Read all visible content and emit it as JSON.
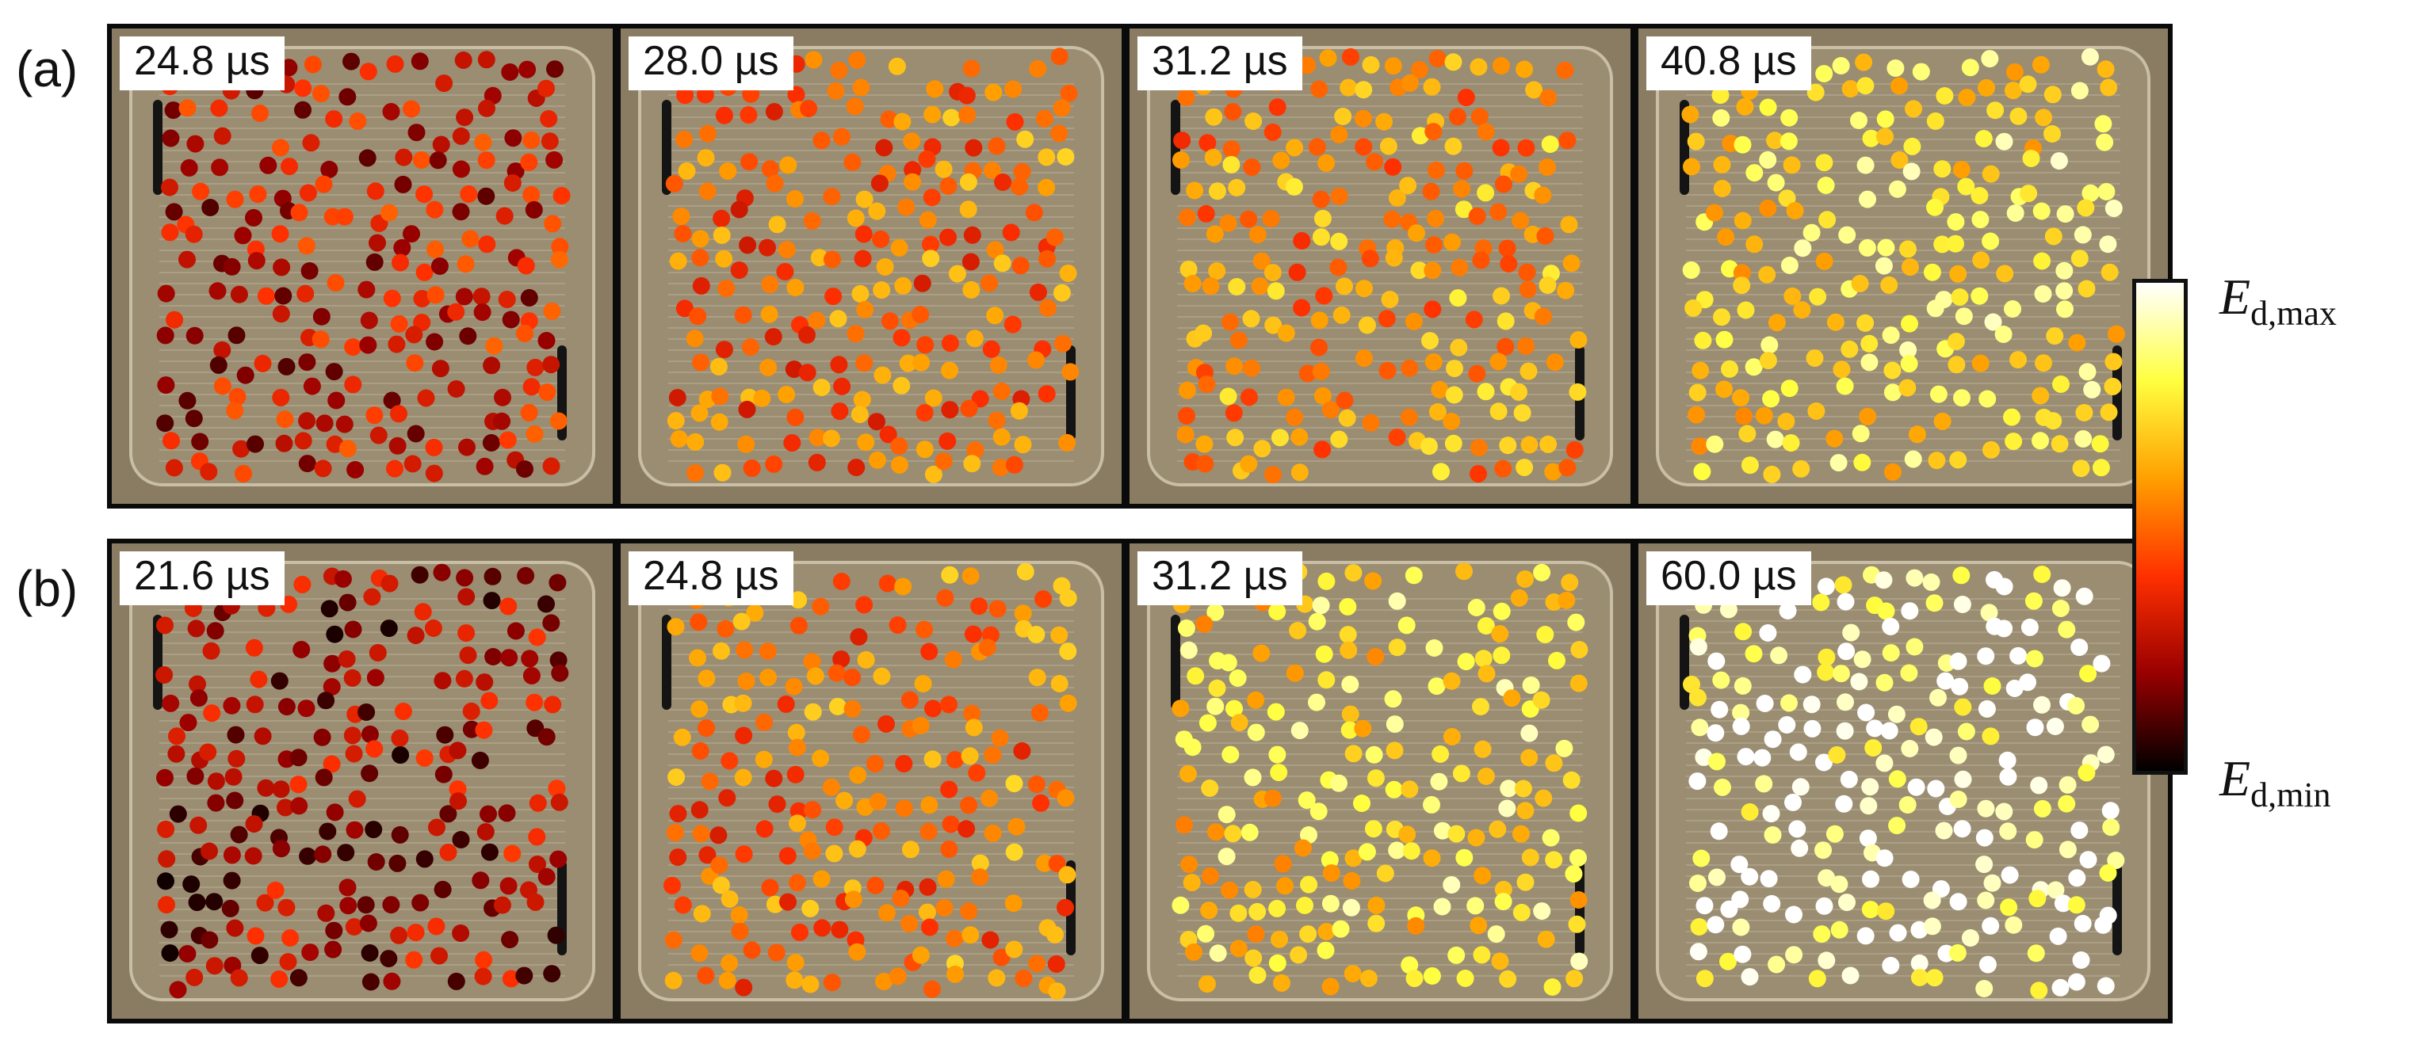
{
  "rows": [
    {
      "label": "(a)",
      "panels": [
        {
          "time": "24.8 µs",
          "energy_level": 0.3
        },
        {
          "time": "28.0 µs",
          "energy_level": 0.5
        },
        {
          "time": "31.2 µs",
          "energy_level": 0.58
        },
        {
          "time": "40.8 µs",
          "energy_level": 0.75
        }
      ]
    },
    {
      "label": "(b)",
      "panels": [
        {
          "time": "21.6 µs",
          "energy_level": 0.22
        },
        {
          "time": "24.8 µs",
          "energy_level": 0.52
        },
        {
          "time": "31.2 µs",
          "energy_level": 0.74
        },
        {
          "time": "60.0 µs",
          "energy_level": 0.94
        }
      ]
    }
  ],
  "colorbar": {
    "max_label_main": "E",
    "max_label_sub": "d,max",
    "min_label_main": "E",
    "min_label_sub": "d,min",
    "colors": [
      "#ffffff",
      "#ffff40",
      "#ffa000",
      "#ff3000",
      "#990000",
      "#000000"
    ]
  }
}
